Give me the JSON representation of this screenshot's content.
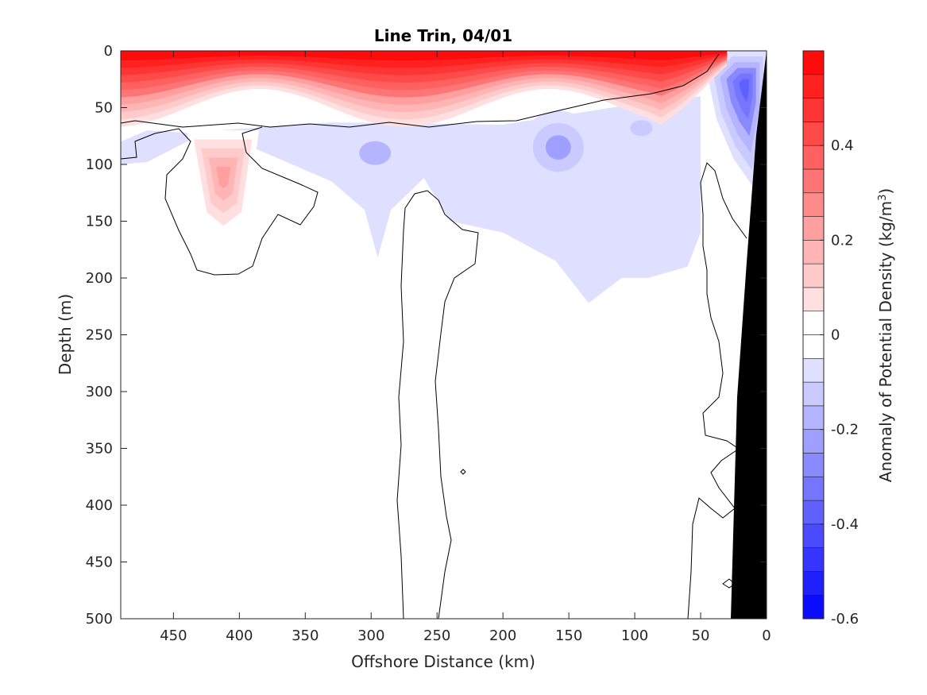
{
  "chart_data": {
    "type": "heatmap",
    "title": "Line Trin, 04/01",
    "xlabel": "Offshore Distance (km)",
    "ylabel": "Depth (m)",
    "colorbar_label": "Anomaly of Potential Density (kg/m",
    "colorbar_label_sup": "3",
    "colorbar_label_end": ")",
    "xlim": [
      490,
      0
    ],
    "ylim": [
      500,
      0
    ],
    "x_ticks": [
      450,
      400,
      350,
      300,
      250,
      200,
      150,
      100,
      50,
      0
    ],
    "y_ticks": [
      0,
      50,
      100,
      150,
      200,
      250,
      300,
      350,
      400,
      450,
      500
    ],
    "clim": [
      -0.6,
      0.6
    ],
    "colorbar_ticks": [
      0.4,
      0.2,
      0,
      -0.2,
      -0.4,
      -0.6
    ],
    "contour_levels": 24,
    "colormap": {
      "low": "#0000ff",
      "mid": "#ffffff",
      "high": "#ff0000"
    },
    "features": [
      {
        "kind": "surface-positive-anomaly",
        "x_range": [
          490,
          30
        ],
        "depth_range": [
          0,
          65
        ],
        "peak_value": 0.6
      },
      {
        "kind": "positive-anomaly-core",
        "x": 412,
        "depth": 118,
        "value": 0.2
      },
      {
        "kind": "negative-anomaly-core",
        "x": 158,
        "depth": 85,
        "value": -0.2
      },
      {
        "kind": "negative-anomaly-core",
        "x": 295,
        "depth": 88,
        "value": -0.15
      },
      {
        "kind": "negative-anomaly-core",
        "x": 15,
        "depth": 25,
        "value": -0.35
      }
    ],
    "shelf_color": "#000000"
  }
}
